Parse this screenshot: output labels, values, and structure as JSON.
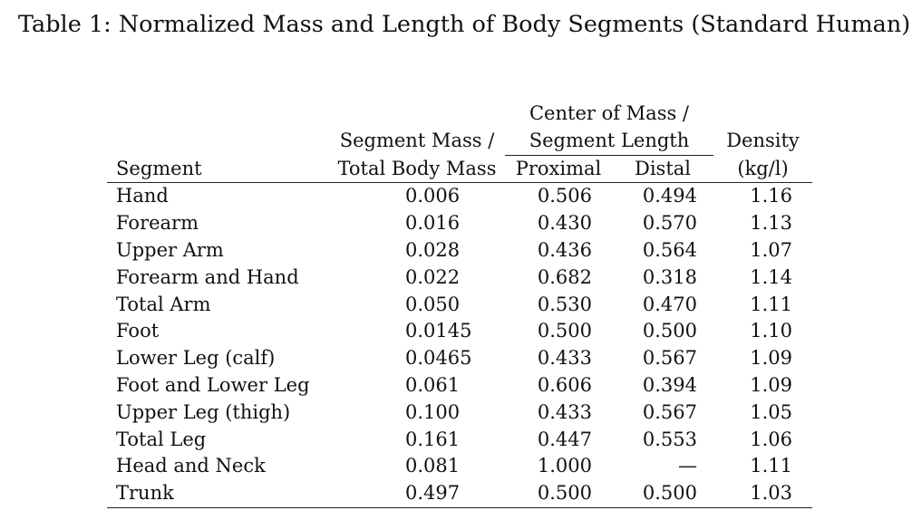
{
  "caption": "Table 1: Normalized Mass and Length of Body Segments (Standard Human)",
  "headers": {
    "segment": "Segment",
    "mass_line1": "Segment Mass /",
    "mass_line2": "Total Body Mass",
    "com_line1": "Center of Mass /",
    "com_line2": "Segment Length",
    "proximal": "Proximal",
    "distal": "Distal",
    "density_line1": "Density",
    "density_line2": "(kg/l)"
  },
  "rows": [
    {
      "segment": "Hand",
      "mass": "0.006",
      "proximal": "0.506",
      "distal": "0.494",
      "density": "1.16"
    },
    {
      "segment": "Forearm",
      "mass": "0.016",
      "proximal": "0.430",
      "distal": "0.570",
      "density": "1.13"
    },
    {
      "segment": "Upper Arm",
      "mass": "0.028",
      "proximal": "0.436",
      "distal": "0.564",
      "density": "1.07"
    },
    {
      "segment": "Forearm and Hand",
      "mass": "0.022",
      "proximal": "0.682",
      "distal": "0.318",
      "density": "1.14"
    },
    {
      "segment": "Total Arm",
      "mass": "0.050",
      "proximal": "0.530",
      "distal": "0.470",
      "density": "1.11"
    },
    {
      "segment": "Foot",
      "mass": "0.0145",
      "proximal": "0.500",
      "distal": "0.500",
      "density": "1.10"
    },
    {
      "segment": "Lower Leg (calf)",
      "mass": "0.0465",
      "proximal": "0.433",
      "distal": "0.567",
      "density": "1.09"
    },
    {
      "segment": "Foot and Lower Leg",
      "mass": "0.061",
      "proximal": "0.606",
      "distal": "0.394",
      "density": "1.09"
    },
    {
      "segment": "Upper Leg (thigh)",
      "mass": "0.100",
      "proximal": "0.433",
      "distal": "0.567",
      "density": "1.05"
    },
    {
      "segment": "Total Leg",
      "mass": "0.161",
      "proximal": "0.447",
      "distal": "0.553",
      "density": "1.06"
    },
    {
      "segment": "Head and Neck",
      "mass": "0.081",
      "proximal": "1.000",
      "distal": "—",
      "density": "1.11"
    },
    {
      "segment": "Trunk",
      "mass": "0.497",
      "proximal": "0.500",
      "distal": "0.500",
      "density": "1.03"
    }
  ]
}
